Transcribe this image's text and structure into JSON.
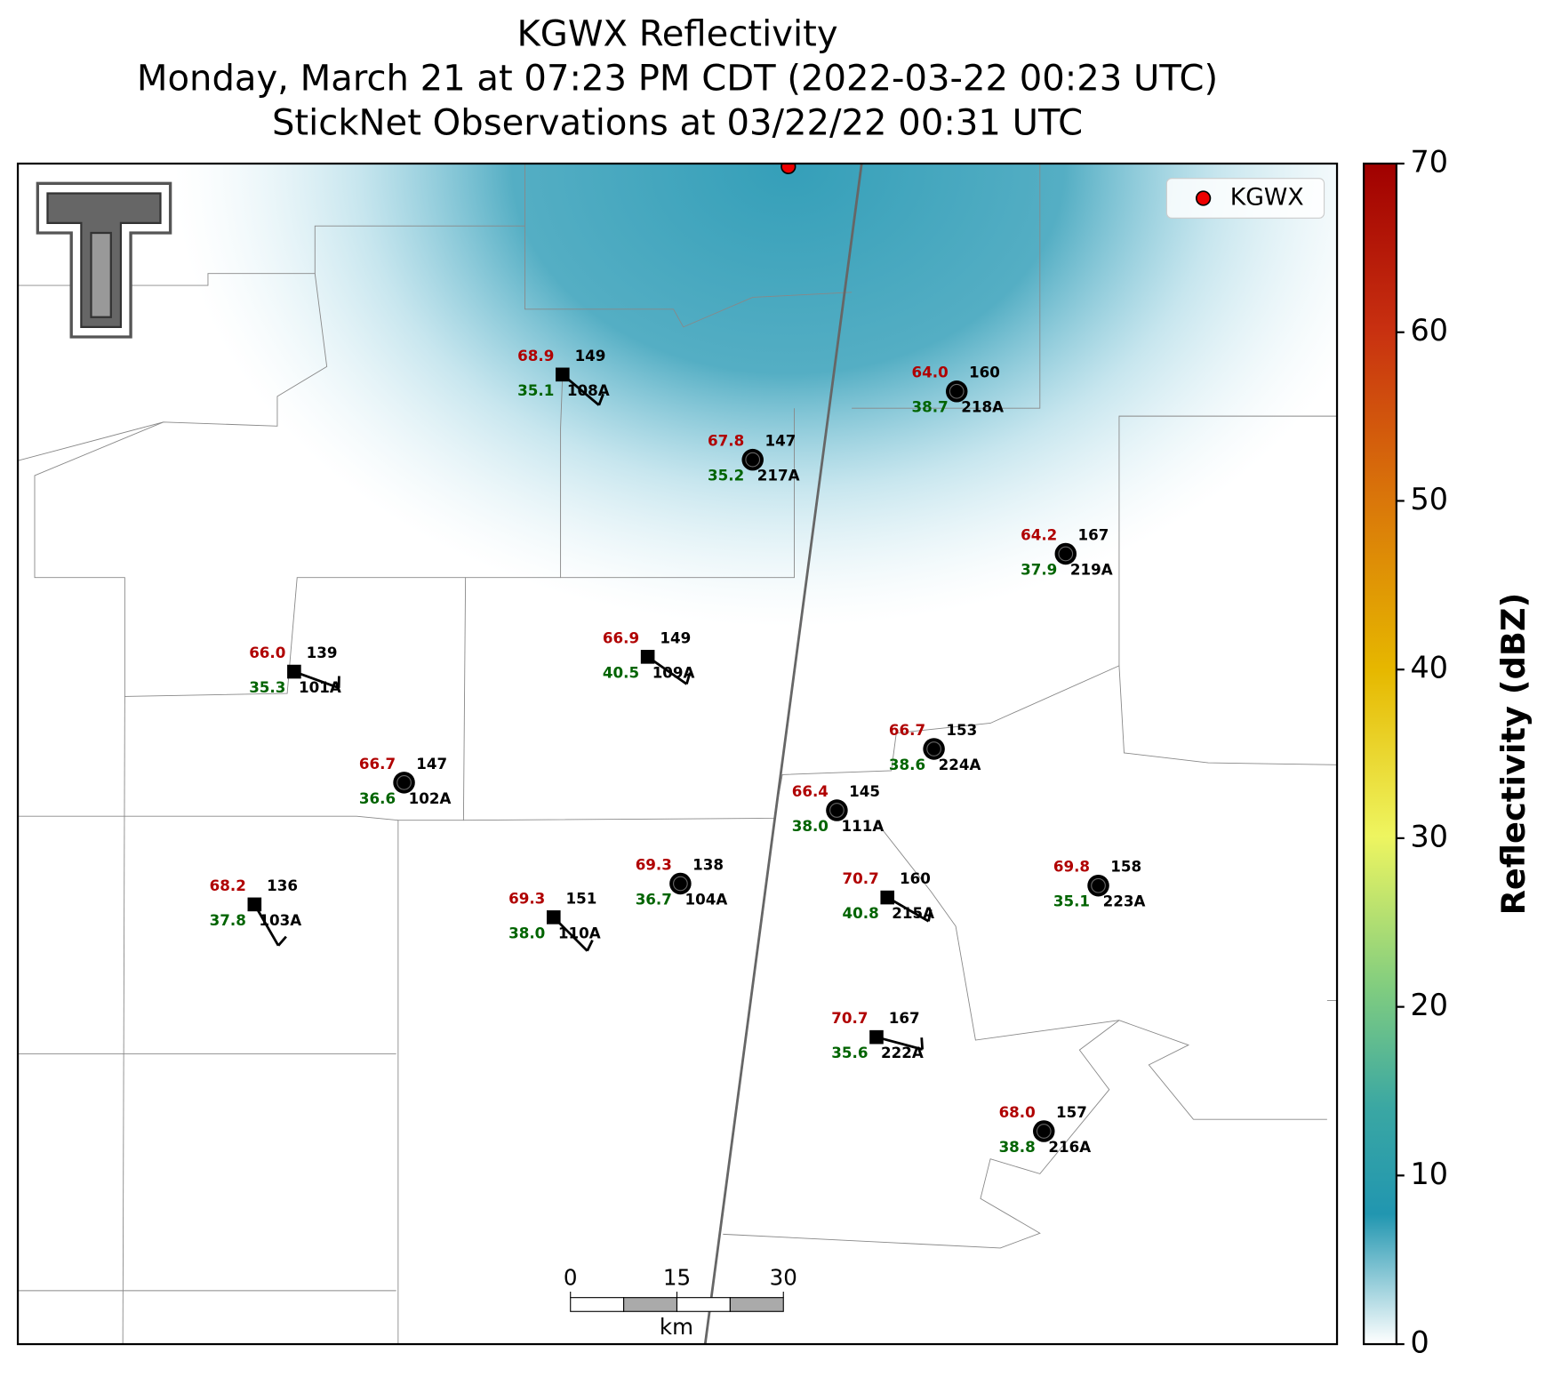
{
  "header": {
    "title": "KGWX Reflectivity",
    "subtitle": "Monday, March 21 at 07:23 PM CDT (2022-03-22 00:23 UTC)",
    "observation_time": "StickNet Observations at 03/22/22 00:31 UTC"
  },
  "legend": {
    "label": "KGWX"
  },
  "colorbar": {
    "label": "Reflectivity (dBZ)",
    "range": [
      0,
      70
    ],
    "ticks": [
      0,
      10,
      20,
      30,
      40,
      50,
      60,
      70
    ]
  },
  "scale_bar": {
    "ticks": [
      0,
      15,
      30
    ],
    "unit": "km"
  },
  "stations": [
    {
      "id": "108A",
      "temperature": "68.9",
      "value": "149",
      "dewpoint": "35.1"
    },
    {
      "id": "218A",
      "temperature": "64.0",
      "value": "160",
      "dewpoint": "38.7"
    },
    {
      "id": "217A",
      "temperature": "67.8",
      "value": "147",
      "dewpoint": "35.2"
    },
    {
      "id": "219A",
      "temperature": "64.2",
      "value": "167",
      "dewpoint": "37.9"
    },
    {
      "id": "109A",
      "temperature": "66.9",
      "value": "149",
      "dewpoint": "40.5"
    },
    {
      "id": "101A",
      "temperature": "66.0",
      "value": "139",
      "dewpoint": "35.3"
    },
    {
      "id": "224A",
      "temperature": "66.7",
      "value": "153",
      "dewpoint": "38.6"
    },
    {
      "id": "102A",
      "temperature": "66.7",
      "value": "147",
      "dewpoint": "36.6"
    },
    {
      "id": "111A",
      "temperature": "66.4",
      "value": "145",
      "dewpoint": "38.0"
    },
    {
      "id": "104A",
      "temperature": "69.3",
      "value": "138",
      "dewpoint": "36.7"
    },
    {
      "id": "215A",
      "temperature": "70.7",
      "value": "160",
      "dewpoint": "40.8"
    },
    {
      "id": "223A",
      "temperature": "69.8",
      "value": "158",
      "dewpoint": "35.1"
    },
    {
      "id": "103A",
      "temperature": "68.2",
      "value": "136",
      "dewpoint": "37.8"
    },
    {
      "id": "110A",
      "temperature": "69.3",
      "value": "151",
      "dewpoint": "38.0"
    },
    {
      "id": "222A",
      "temperature": "70.7",
      "value": "167",
      "dewpoint": "35.6"
    },
    {
      "id": "216A",
      "temperature": "68.0",
      "value": "157",
      "dewpoint": "38.8"
    }
  ]
}
